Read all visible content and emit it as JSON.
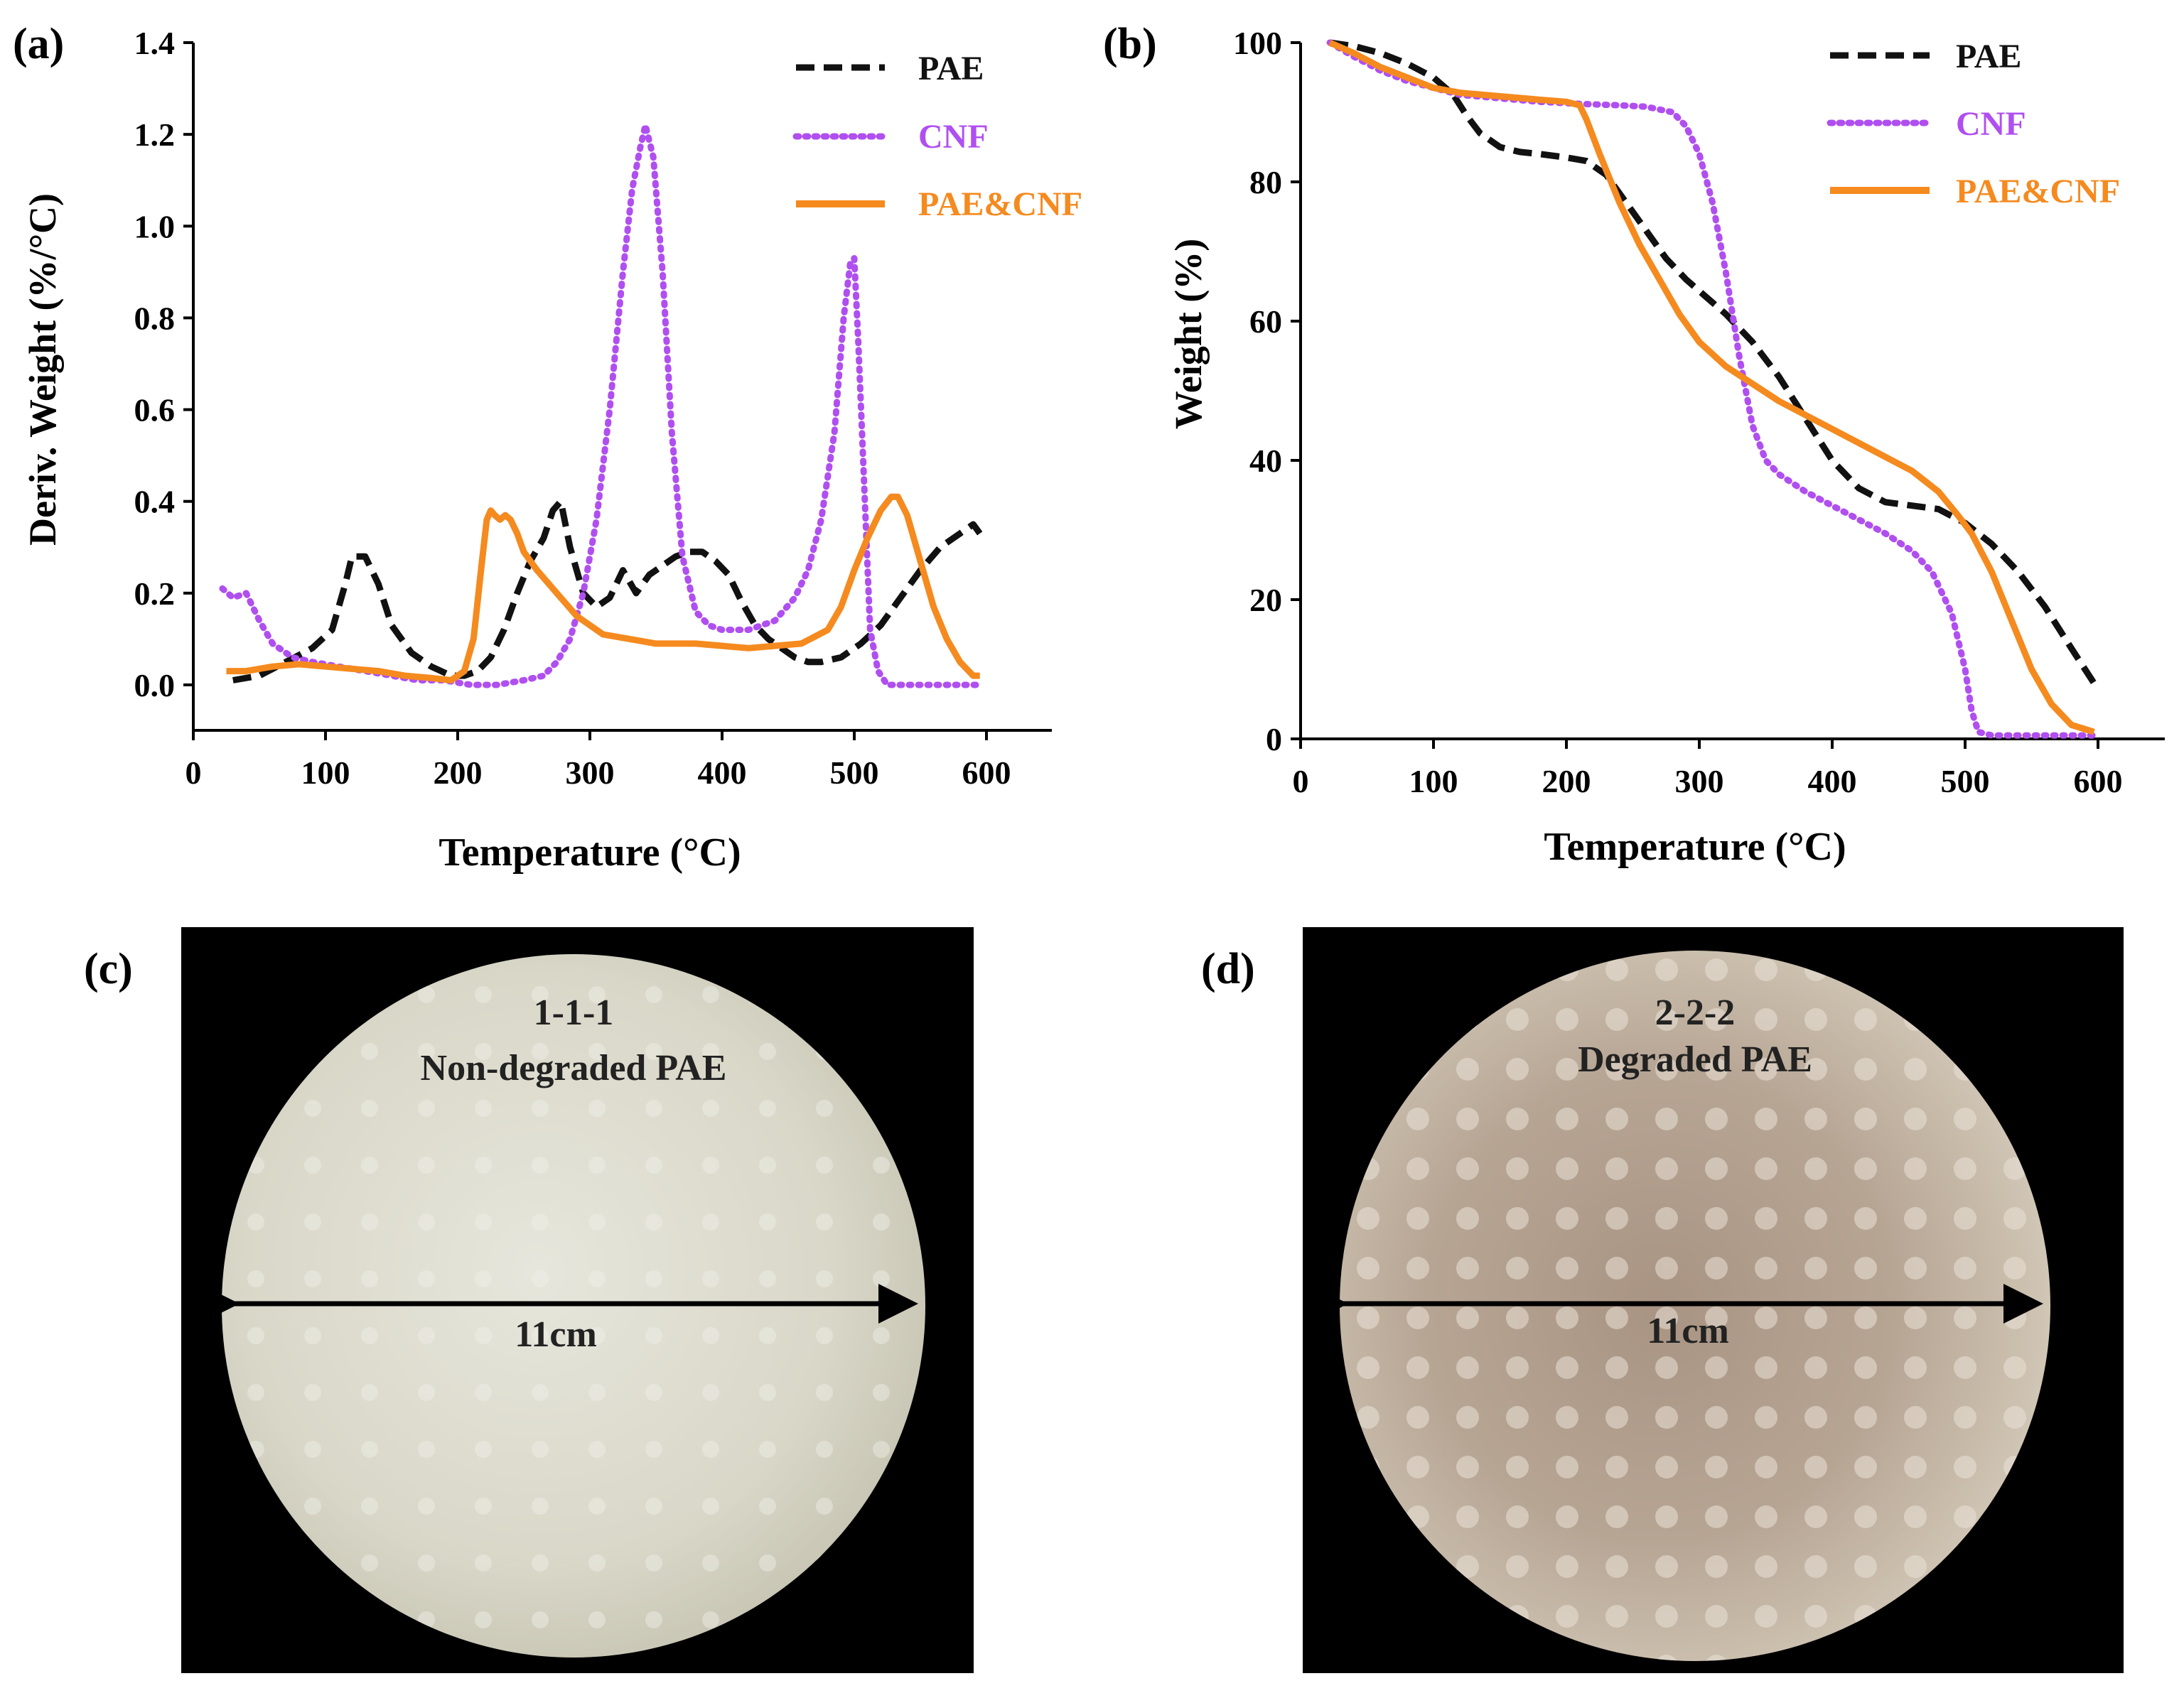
{
  "panels": {
    "a": {
      "label": "(a)"
    },
    "b": {
      "label": "(b)"
    },
    "c": {
      "label": "(c)",
      "sample_id": "1-1-1",
      "caption": "Non-degraded PAE",
      "dimension": "11cm"
    },
    "d": {
      "label": "(d)",
      "sample_id": "2-2-2",
      "caption": "Degraded PAE",
      "dimension": "11cm"
    }
  },
  "colors": {
    "PAE": "#111111",
    "CNF": "#b04ff0",
    "PAE&CNF": "#f58a1f"
  },
  "chart_data": [
    {
      "type": "line",
      "panel": "a",
      "xlabel": "Temperature (°C)",
      "ylabel": "Deriv. Weight (%/°C)",
      "xlim": [
        0,
        650
      ],
      "ylim": [
        -0.1,
        1.4
      ],
      "xticks": [
        0,
        100,
        200,
        300,
        400,
        500,
        600
      ],
      "yticks": [
        0.0,
        0.2,
        0.4,
        0.6,
        0.8,
        1.0,
        1.2,
        1.4
      ],
      "ytick_labels": [
        "0.0",
        "0.2",
        "0.4",
        "0.6",
        "0.8",
        "1.0",
        "1.2",
        "1.4"
      ],
      "legend": "top-right",
      "series": [
        {
          "name": "PAE",
          "style": "dashed",
          "x": [
            30,
            50,
            70,
            90,
            105,
            115,
            120,
            130,
            140,
            150,
            165,
            180,
            195,
            205,
            215,
            225,
            235,
            245,
            255,
            265,
            272,
            278,
            285,
            295,
            305,
            315,
            325,
            335,
            345,
            355,
            365,
            375,
            385,
            395,
            405,
            415,
            425,
            435,
            445,
            455,
            465,
            475,
            490,
            505,
            520,
            535,
            550,
            565,
            580,
            590,
            595
          ],
          "y": [
            0.01,
            0.02,
            0.05,
            0.08,
            0.12,
            0.22,
            0.28,
            0.28,
            0.22,
            0.13,
            0.07,
            0.04,
            0.02,
            0.02,
            0.03,
            0.06,
            0.12,
            0.2,
            0.27,
            0.32,
            0.38,
            0.4,
            0.3,
            0.2,
            0.17,
            0.19,
            0.25,
            0.2,
            0.24,
            0.26,
            0.28,
            0.29,
            0.29,
            0.27,
            0.24,
            0.18,
            0.13,
            0.1,
            0.08,
            0.06,
            0.05,
            0.05,
            0.06,
            0.09,
            0.13,
            0.19,
            0.25,
            0.3,
            0.33,
            0.35,
            0.33
          ]
        },
        {
          "name": "CNF",
          "style": "dotted",
          "x": [
            22,
            30,
            40,
            50,
            60,
            75,
            90,
            110,
            130,
            150,
            170,
            190,
            210,
            230,
            250,
            265,
            275,
            285,
            295,
            305,
            315,
            325,
            332,
            338,
            342,
            348,
            355,
            362,
            370,
            380,
            390,
            400,
            420,
            440,
            455,
            465,
            475,
            485,
            492,
            497,
            500,
            503,
            508,
            512,
            518,
            525,
            540,
            560,
            580,
            595
          ],
          "y": [
            0.21,
            0.19,
            0.2,
            0.14,
            0.09,
            0.06,
            0.05,
            0.04,
            0.03,
            0.02,
            0.01,
            0.01,
            0.0,
            0.0,
            0.01,
            0.02,
            0.05,
            0.1,
            0.2,
            0.36,
            0.6,
            0.9,
            1.08,
            1.17,
            1.22,
            1.15,
            0.9,
            0.55,
            0.28,
            0.16,
            0.13,
            0.12,
            0.12,
            0.14,
            0.19,
            0.25,
            0.36,
            0.55,
            0.8,
            0.92,
            0.93,
            0.75,
            0.4,
            0.12,
            0.03,
            0.0,
            0.0,
            0.0,
            0.0,
            0.0
          ]
        },
        {
          "name": "PAE&CNF",
          "style": "solid",
          "x": [
            25,
            40,
            60,
            80,
            100,
            120,
            140,
            160,
            180,
            195,
            205,
            212,
            218,
            222,
            225,
            228,
            232,
            236,
            240,
            245,
            250,
            260,
            275,
            290,
            310,
            330,
            350,
            380,
            420,
            460,
            480,
            490,
            500,
            510,
            520,
            528,
            533,
            540,
            550,
            560,
            570,
            580,
            590,
            595
          ],
          "y": [
            0.03,
            0.03,
            0.04,
            0.045,
            0.04,
            0.035,
            0.03,
            0.02,
            0.015,
            0.01,
            0.03,
            0.1,
            0.26,
            0.36,
            0.38,
            0.37,
            0.36,
            0.37,
            0.36,
            0.33,
            0.29,
            0.25,
            0.2,
            0.15,
            0.11,
            0.1,
            0.09,
            0.09,
            0.08,
            0.09,
            0.12,
            0.17,
            0.25,
            0.32,
            0.38,
            0.41,
            0.41,
            0.37,
            0.27,
            0.17,
            0.1,
            0.05,
            0.02,
            0.02
          ]
        }
      ]
    },
    {
      "type": "line",
      "panel": "b",
      "xlabel": "Temperature (°C)",
      "ylabel": "Weight (%)",
      "xlim": [
        0,
        650
      ],
      "ylim": [
        0,
        100
      ],
      "xticks": [
        0,
        100,
        200,
        300,
        400,
        500,
        600
      ],
      "yticks": [
        0,
        20,
        40,
        60,
        80,
        100
      ],
      "ytick_labels": [
        "0",
        "20",
        "40",
        "60",
        "80",
        "100"
      ],
      "legend": "top-right",
      "series": [
        {
          "name": "PAE",
          "style": "dashed",
          "x": [
            22,
            40,
            60,
            80,
            100,
            115,
            125,
            135,
            150,
            165,
            180,
            200,
            215,
            230,
            245,
            260,
            275,
            290,
            305,
            320,
            340,
            360,
            380,
            400,
            420,
            440,
            460,
            480,
            500,
            520,
            540,
            560,
            580,
            597
          ],
          "y": [
            100,
            99.5,
            98.5,
            97,
            95,
            92.5,
            89.5,
            87,
            85,
            84.3,
            84,
            83.5,
            83,
            81,
            77,
            73,
            69,
            66,
            63.5,
            61,
            57,
            52,
            46,
            40,
            36,
            34,
            33.5,
            33,
            31,
            28,
            24,
            19,
            13,
            8
          ]
        },
        {
          "name": "CNF",
          "style": "dotted",
          "x": [
            22,
            40,
            60,
            80,
            100,
            120,
            150,
            180,
            210,
            240,
            260,
            280,
            290,
            300,
            310,
            320,
            330,
            340,
            350,
            360,
            380,
            400,
            420,
            440,
            460,
            475,
            490,
            500,
            505,
            510,
            520,
            540,
            560,
            580,
            597
          ],
          "y": [
            100,
            98,
            96,
            94.5,
            93.5,
            92.5,
            92,
            91.5,
            91.2,
            91,
            90.8,
            90,
            88,
            84,
            77,
            67,
            55,
            45,
            40,
            38,
            35.5,
            33.5,
            31.5,
            29.5,
            27,
            24,
            18,
            10,
            4,
            1,
            0.5,
            0.5,
            0.5,
            0.5,
            0.5
          ]
        },
        {
          "name": "PAE&CNF",
          "style": "solid",
          "x": [
            22,
            40,
            60,
            80,
            100,
            120,
            150,
            180,
            200,
            210,
            215,
            225,
            240,
            255,
            270,
            285,
            300,
            320,
            340,
            360,
            380,
            400,
            420,
            440,
            460,
            480,
            495,
            505,
            520,
            535,
            550,
            565,
            580,
            597
          ],
          "y": [
            100,
            98.5,
            96.5,
            95,
            93.5,
            92.8,
            92.3,
            91.8,
            91.5,
            91,
            89,
            84,
            77,
            71,
            66,
            61,
            57,
            53.5,
            51,
            48.5,
            46.5,
            44.5,
            42.5,
            40.5,
            38.5,
            35.5,
            32,
            29.5,
            24,
            17,
            10,
            5,
            2,
            1
          ]
        }
      ]
    }
  ]
}
